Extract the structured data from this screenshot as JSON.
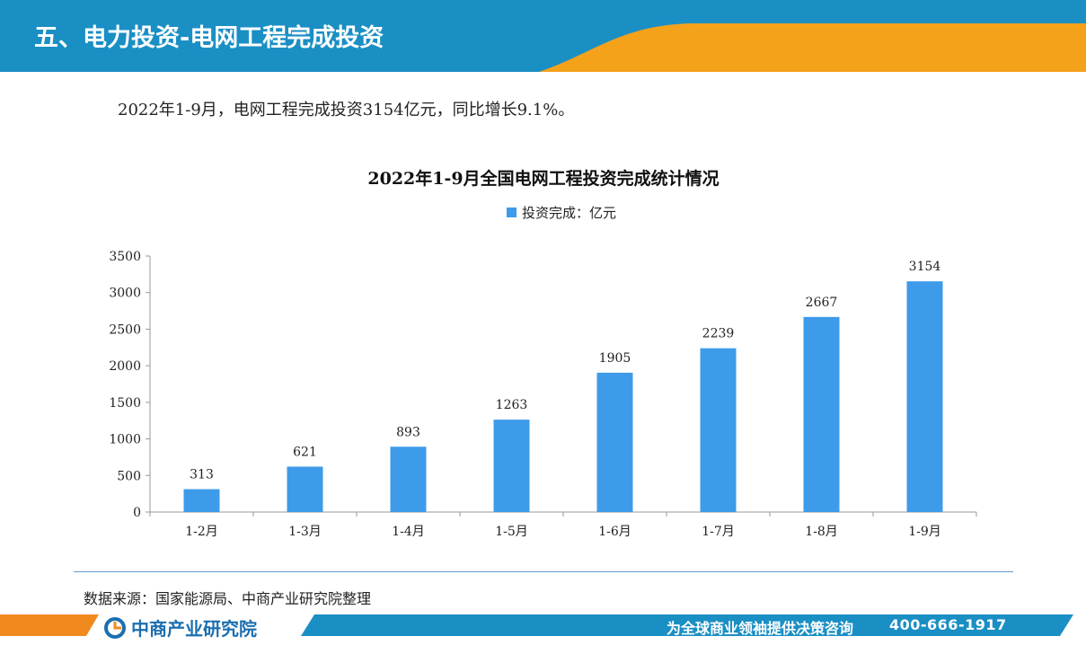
{
  "header": {
    "title": "五、电力投资-电网工程完成投资",
    "colors": {
      "band": "#1a8fc4",
      "accent": "#f5a21b"
    }
  },
  "summary": "2022年1-9月，电网工程完成投资3154亿元，同比增长9.1%。",
  "chart_data": {
    "type": "bar",
    "title": "2022年1-9月全国电网工程投资完成统计情况",
    "categories": [
      "1-2月",
      "1-3月",
      "1-4月",
      "1-5月",
      "1-6月",
      "1-7月",
      "1-8月",
      "1-9月"
    ],
    "series": [
      {
        "name": "投资完成：亿元",
        "values": [
          313,
          621,
          893,
          1263,
          1905,
          2239,
          2667,
          3154
        ],
        "color": "#3d9be9"
      }
    ],
    "ylim": [
      0,
      3500
    ],
    "yticks": [
      0,
      500,
      1000,
      1500,
      2000,
      2500,
      3000,
      3500
    ],
    "legend_position": "top",
    "grid": false,
    "data_labels": true
  },
  "source": "数据来源：国家能源局、中商产业研究院整理",
  "footer": {
    "brand": "中商产业研究院",
    "logo_icon": "askci-logo-icon",
    "slogan": "为全球商业领袖提供决策咨询",
    "phone": "400-666-1917",
    "colors": {
      "band": "#1a8fc4",
      "accent": "#f08a1e"
    }
  }
}
